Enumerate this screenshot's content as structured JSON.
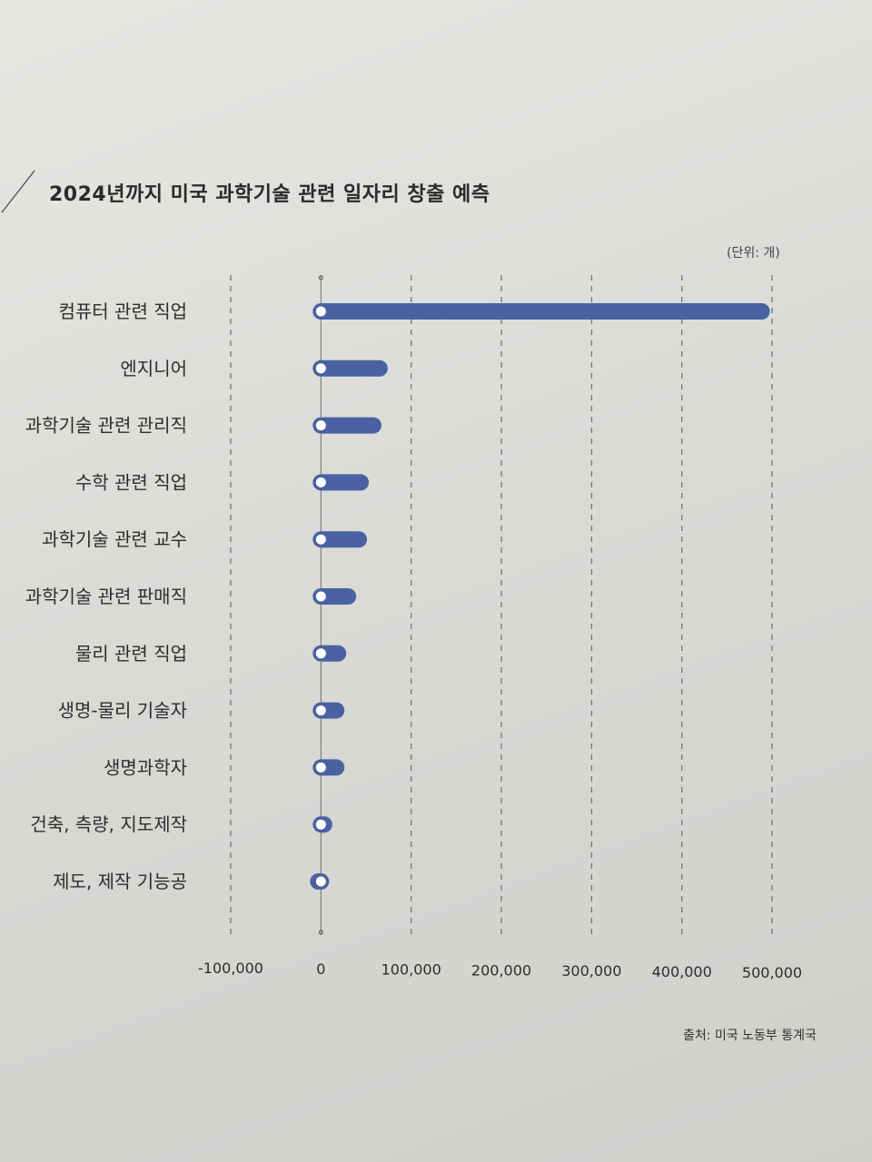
{
  "chart_data": {
    "type": "bar",
    "orientation": "horizontal",
    "title": "2024년까지 미국 과학기술 관련 일자리 창출 예측",
    "unit_label": "(단위: 개)",
    "source": "출처: 미국 노동부 통계국",
    "categories": [
      "컴퓨터 관련 직업",
      "엔지니어",
      "과학기술 관련 관리직",
      "수학 관련 직업",
      "과학기술 관련 교수",
      "과학기술 관련 판매직",
      "물리 관련 직업",
      "생명-물리 기술자",
      "생명과학자",
      "건축, 측량, 지도제작",
      "제도, 제작 기능공"
    ],
    "values": [
      488500,
      65000,
      58000,
      44000,
      42000,
      30000,
      19000,
      17000,
      17000,
      3500,
      -3000
    ],
    "xlim": [
      -100000,
      500000
    ],
    "x_ticks": [
      -100000,
      0,
      100000,
      200000,
      300000,
      400000,
      500000
    ],
    "x_tick_labels": [
      "-100,000",
      "0",
      "100,000",
      "200,000",
      "300,000",
      "400,000",
      "500,000"
    ],
    "grid": true,
    "colors": {
      "bar": "#4a62a2",
      "marker_fill": "#ffffff",
      "grid": "#6e6e6e"
    }
  }
}
